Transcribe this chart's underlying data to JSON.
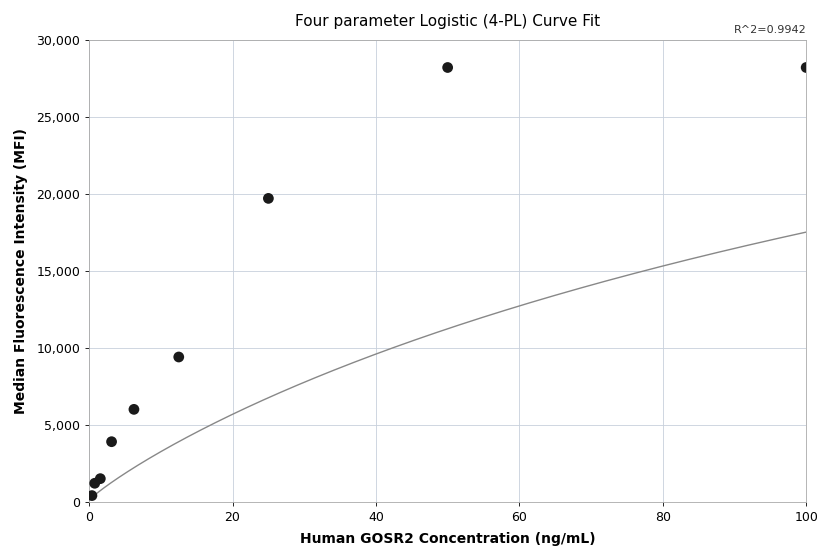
{
  "title": "Four parameter Logistic (4-PL) Curve Fit",
  "xlabel": "Human GOSR2 Concentration (ng/mL)",
  "ylabel": "Median Fluorescence Intensity (MFI)",
  "scatter_x": [
    0.39,
    0.78,
    1.56,
    3.13,
    6.25,
    12.5,
    25,
    50,
    100
  ],
  "scatter_y": [
    400,
    1200,
    1500,
    3900,
    6000,
    9400,
    19700,
    28200,
    28200
  ],
  "xlim": [
    0,
    100
  ],
  "ylim": [
    0,
    30000
  ],
  "xticks": [
    0,
    20,
    40,
    60,
    80,
    100
  ],
  "yticks": [
    0,
    5000,
    10000,
    15000,
    20000,
    25000,
    30000
  ],
  "r_squared": "R^2=0.9942",
  "dot_color": "#1a1a1a",
  "dot_size": 60,
  "line_color": "#888888",
  "background_color": "#ffffff",
  "grid_color": "#c8d0dc",
  "title_fontsize": 11,
  "label_fontsize": 10,
  "tick_fontsize": 9
}
